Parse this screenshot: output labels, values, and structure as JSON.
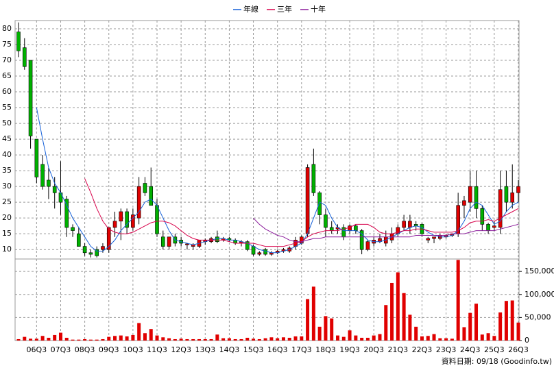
{
  "chart_data": [
    {
      "type": "candlestick",
      "up_color": "#e00000",
      "down_color": "#00b000",
      "open": [
        79,
        74,
        70,
        45,
        37,
        32,
        30,
        28,
        26,
        17,
        15,
        11,
        9,
        10,
        10,
        10,
        17,
        19,
        22,
        17,
        20,
        31,
        30,
        24,
        14,
        11,
        14,
        13,
        11.5,
        11,
        11,
        12.5,
        12.5,
        14,
        13,
        13.5,
        13,
        12,
        12.5,
        11,
        8.5,
        10,
        8.5,
        9,
        9.5,
        9.5,
        11,
        12,
        15,
        37,
        28,
        21,
        17,
        16.5,
        17,
        16,
        17.5,
        16,
        10,
        12,
        12.5,
        12,
        13,
        15,
        17,
        17,
        18,
        18,
        13,
        13.5,
        13.5,
        14,
        14.5,
        15,
        24,
        25,
        30,
        23,
        18,
        17,
        17,
        30,
        25,
        28
      ],
      "high": [
        82,
        77,
        70,
        45,
        40,
        36,
        33,
        38,
        27,
        18,
        17,
        12,
        10,
        11,
        12,
        17,
        22,
        23,
        23,
        23,
        33,
        33,
        36,
        26,
        16,
        14,
        15,
        14,
        12,
        12,
        13,
        13.5,
        14,
        16,
        14,
        14,
        13.5,
        13,
        13,
        11.5,
        9.5,
        10.5,
        9.5,
        10,
        10.5,
        11,
        14,
        14.5,
        37,
        42,
        28.5,
        23,
        19,
        18,
        18,
        18,
        18,
        16.5,
        13,
        14,
        15,
        16,
        17,
        18,
        21,
        21,
        19,
        18.5,
        14,
        14,
        15,
        15,
        15,
        28,
        27,
        35,
        35,
        24,
        18.5,
        19,
        35,
        35,
        37,
        32
      ],
      "low": [
        71,
        67,
        42,
        31,
        29,
        26,
        23,
        21,
        14,
        14,
        11,
        8,
        7.5,
        7.5,
        9,
        9,
        14,
        13,
        15,
        16,
        18,
        27,
        24,
        14,
        10,
        10,
        11,
        11,
        10,
        10,
        10.5,
        11.5,
        12,
        12,
        12.5,
        12.5,
        11.5,
        11,
        9.5,
        8,
        8,
        8,
        8,
        8.5,
        9,
        9,
        10,
        11.5,
        14,
        27,
        18,
        14,
        15,
        15,
        13,
        15,
        15,
        8.5,
        9.5,
        11,
        12,
        11,
        12,
        14,
        16,
        15,
        16,
        14,
        12,
        12,
        13,
        13.5,
        14,
        14,
        20,
        22,
        20,
        16,
        15,
        16,
        15,
        22,
        23,
        25
      ],
      "close": [
        73,
        68,
        46,
        33,
        30,
        30,
        28,
        25,
        17,
        16,
        11,
        9,
        8.5,
        8,
        11,
        17,
        19,
        22,
        17,
        21,
        30,
        28,
        24,
        15,
        11,
        14,
        12,
        12,
        11.8,
        11.5,
        13,
        13,
        13.5,
        12.5,
        13.5,
        13,
        12,
        12.5,
        10,
        8.5,
        9,
        8.5,
        9,
        9.5,
        10,
        10.5,
        13,
        14,
        36,
        28,
        21,
        17,
        16,
        17,
        14,
        17.5,
        16,
        10,
        12.5,
        13,
        13.5,
        14,
        15,
        17,
        19,
        19,
        17.5,
        15,
        13.5,
        14,
        14.5,
        14.5,
        15,
        24,
        25.5,
        30,
        23,
        18,
        16,
        17.5,
        29,
        25,
        28,
        30
      ],
      "series": [
        {
          "name": "年線",
          "color": "#1560d8",
          "values": [
            null,
            null,
            null,
            55,
            45,
            36,
            31,
            28,
            24,
            20,
            17,
            14,
            11,
            9.5,
            9.5,
            11,
            13,
            16,
            18,
            20,
            22,
            25,
            26,
            24,
            20,
            16,
            13,
            12.5,
            12,
            11.5,
            12,
            12.5,
            13,
            13.5,
            13.5,
            13,
            13,
            12.5,
            12,
            11,
            10,
            9.5,
            9,
            9,
            9.5,
            10,
            11,
            12,
            15,
            20,
            25,
            24,
            20,
            17,
            16,
            16,
            16,
            15,
            13,
            12.5,
            12.5,
            13,
            14,
            15,
            16,
            17,
            17.5,
            17,
            15.5,
            14.5,
            14,
            14,
            14.5,
            16,
            19,
            23,
            25,
            24,
            21,
            18,
            19,
            22,
            24,
            25
          ]
        },
        {
          "name": "三年",
          "color": "#d8004a",
          "values": [
            null,
            null,
            null,
            null,
            null,
            null,
            null,
            null,
            null,
            null,
            null,
            32.5,
            28,
            23,
            19,
            16.5,
            15.5,
            15,
            15,
            15.5,
            16.5,
            17.5,
            18.5,
            19,
            19,
            18.5,
            17.5,
            16,
            14.5,
            13.5,
            13,
            13,
            13,
            13,
            13,
            12.5,
            12,
            12,
            12,
            12,
            11.5,
            11,
            11,
            11,
            11,
            11.5,
            12,
            12.5,
            14,
            15,
            15.5,
            16,
            16,
            16,
            16.5,
            17,
            18,
            18,
            18,
            17,
            15.5,
            15,
            15,
            15.5,
            16,
            16,
            16.5,
            16.5,
            16,
            15.5,
            15.5,
            15.5,
            15.5,
            16,
            17,
            18.5,
            19,
            19,
            19.5,
            19,
            20,
            21,
            22,
            23
          ]
        },
        {
          "name": "十年",
          "color": "#8a1a9a",
          "values": [
            null,
            null,
            null,
            null,
            null,
            null,
            null,
            null,
            null,
            null,
            null,
            null,
            null,
            null,
            null,
            null,
            null,
            null,
            null,
            null,
            null,
            null,
            null,
            null,
            null,
            null,
            null,
            null,
            null,
            null,
            null,
            null,
            null,
            null,
            null,
            null,
            null,
            null,
            null,
            20,
            18,
            16.5,
            15.5,
            14.5,
            14,
            13,
            12.5,
            12.5,
            13,
            13.5,
            13.5,
            14,
            14,
            14,
            14,
            14,
            14,
            14,
            14,
            14,
            14,
            14,
            14,
            14,
            14,
            14,
            14.5,
            14.5,
            14.5,
            14.5,
            14.5,
            14.5,
            15,
            15,
            15,
            15.5,
            16,
            16,
            16,
            16,
            16.5,
            17,
            17.5,
            18
          ]
        }
      ],
      "ylim": [
        7,
        82.6
      ],
      "yticks": [
        10,
        15,
        20,
        25,
        30,
        35,
        40,
        45,
        50,
        55,
        60,
        65,
        70,
        75,
        80
      ],
      "grid": true
    },
    {
      "type": "bar",
      "color": "#e00000",
      "categories": [
        null,
        null,
        null,
        "06Q3",
        null,
        null,
        null,
        "07Q3",
        null,
        null,
        null,
        "08Q3",
        null,
        null,
        null,
        "09Q3",
        null,
        null,
        null,
        "10Q3",
        null,
        null,
        null,
        "11Q3",
        null,
        null,
        null,
        "12Q3",
        null,
        null,
        null,
        "13Q3",
        null,
        null,
        null,
        "14Q3",
        null,
        null,
        null,
        "15Q3",
        null,
        null,
        null,
        "16Q3",
        null,
        null,
        null,
        "17Q3",
        null,
        null,
        null,
        "18Q3",
        null,
        null,
        null,
        "19Q3",
        null,
        null,
        null,
        "20Q3",
        null,
        null,
        null,
        "21Q3",
        null,
        null,
        null,
        "22Q3",
        null,
        null,
        null,
        "23Q3",
        null,
        null,
        null,
        "24Q3",
        null,
        null,
        null,
        "25Q3",
        null,
        null,
        null,
        "26Q3"
      ],
      "values": [
        3000,
        8000,
        4000,
        4000,
        10000,
        6000,
        12000,
        17000,
        6000,
        2000,
        2000,
        3000,
        2000,
        2000,
        3000,
        8000,
        10000,
        11000,
        9000,
        12000,
        38000,
        16000,
        25000,
        11000,
        7000,
        5000,
        3000,
        4000,
        3000,
        3000,
        3000,
        3000,
        3000,
        13000,
        5000,
        5000,
        3000,
        3000,
        6000,
        4000,
        3000,
        5000,
        7000,
        5000,
        7000,
        6000,
        9000,
        9000,
        90000,
        117000,
        30000,
        53000,
        48000,
        11000,
        8000,
        22000,
        11000,
        6000,
        6000,
        11000,
        14000,
        77000,
        125000,
        148000,
        103000,
        56000,
        30000,
        9000,
        10000,
        14000,
        5000,
        5000,
        4000,
        175000,
        29000,
        60000,
        80000,
        13000,
        16000,
        10000,
        61000,
        86000,
        87000,
        39000
      ],
      "ylim": [
        0,
        177000
      ],
      "yticks": [
        0,
        {
          "value": 50000,
          "label": "50,000"
        },
        {
          "value": 100000,
          "label": "100,000"
        },
        {
          "value": 150000,
          "label": "150,000"
        }
      ],
      "grid": true,
      "annotation": "資料日期: 09/18 (Goodinfo.tw)"
    }
  ]
}
